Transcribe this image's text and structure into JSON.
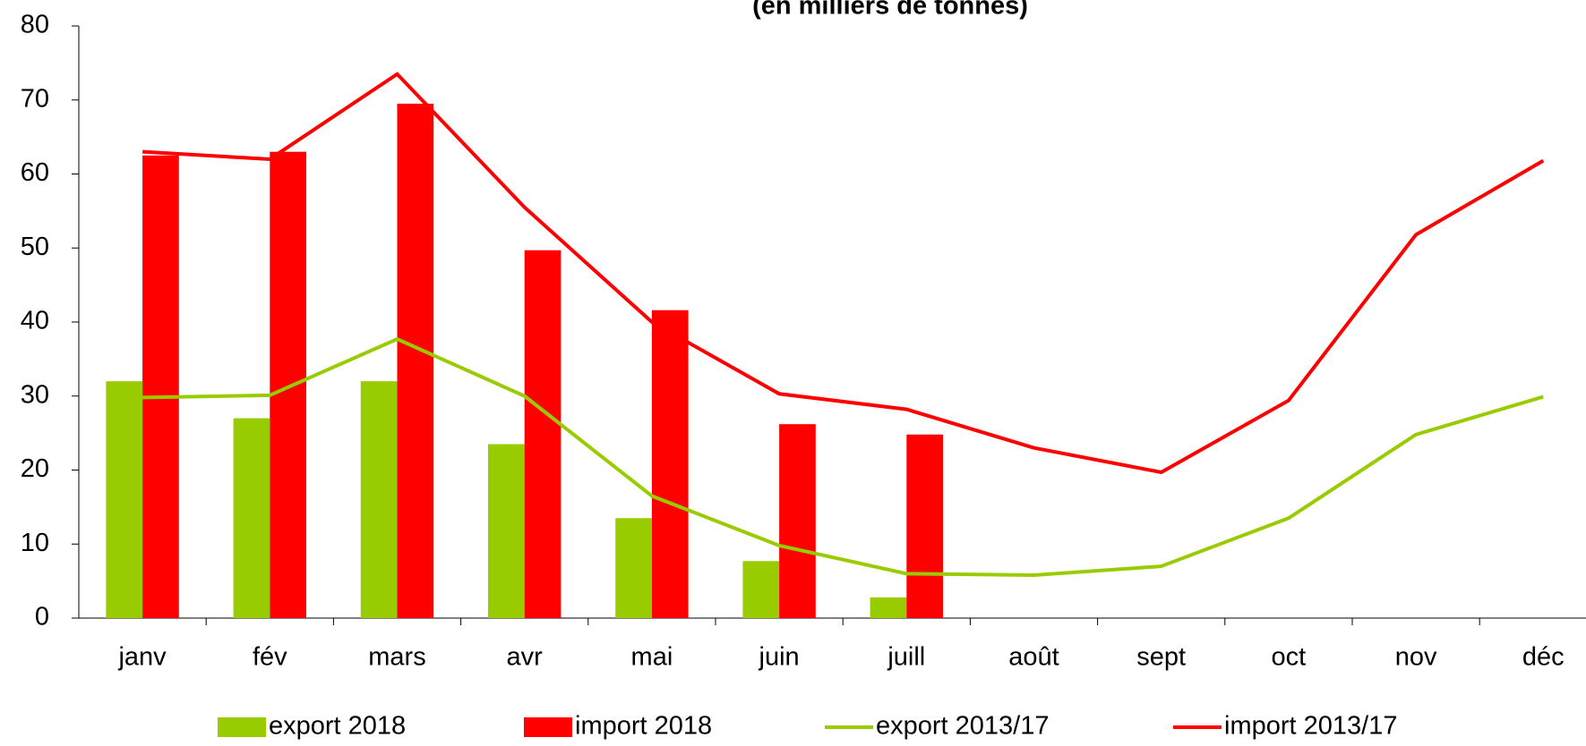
{
  "chart_data": {
    "type": "bar_line",
    "title": "(en milliers de tonnes)",
    "categories": [
      "janv",
      "fév",
      "mars",
      "avr",
      "mai",
      "juin",
      "juill",
      "août",
      "sept",
      "oct",
      "nov",
      "déc"
    ],
    "series": [
      {
        "name": "export 2018",
        "kind": "bar",
        "color": "#99cc00",
        "values": [
          32,
          27,
          32,
          23.5,
          13.5,
          7.7,
          2.8,
          null,
          null,
          null,
          null,
          null
        ]
      },
      {
        "name": "import 2018",
        "kind": "bar",
        "color": "#ff0000",
        "values": [
          62.5,
          63,
          69.5,
          49.7,
          41.6,
          26.2,
          24.8,
          null,
          null,
          null,
          null,
          null
        ]
      },
      {
        "name": "export 2013/17",
        "kind": "line",
        "color": "#99cc00",
        "values": [
          29.8,
          30.1,
          37.7,
          30,
          16.5,
          9.8,
          6,
          5.8,
          7,
          13.5,
          24.8,
          29.9
        ]
      },
      {
        "name": "import 2013/17",
        "kind": "line",
        "color": "#ff0000",
        "values": [
          63,
          62,
          73.5,
          55.5,
          40,
          30.3,
          28.2,
          23,
          19.7,
          29.4,
          51.8,
          61.8
        ]
      }
    ],
    "ylim": [
      0,
      80
    ],
    "yticks": [
      0,
      10,
      20,
      30,
      40,
      50,
      60,
      70,
      80
    ],
    "legend": "bottom"
  }
}
